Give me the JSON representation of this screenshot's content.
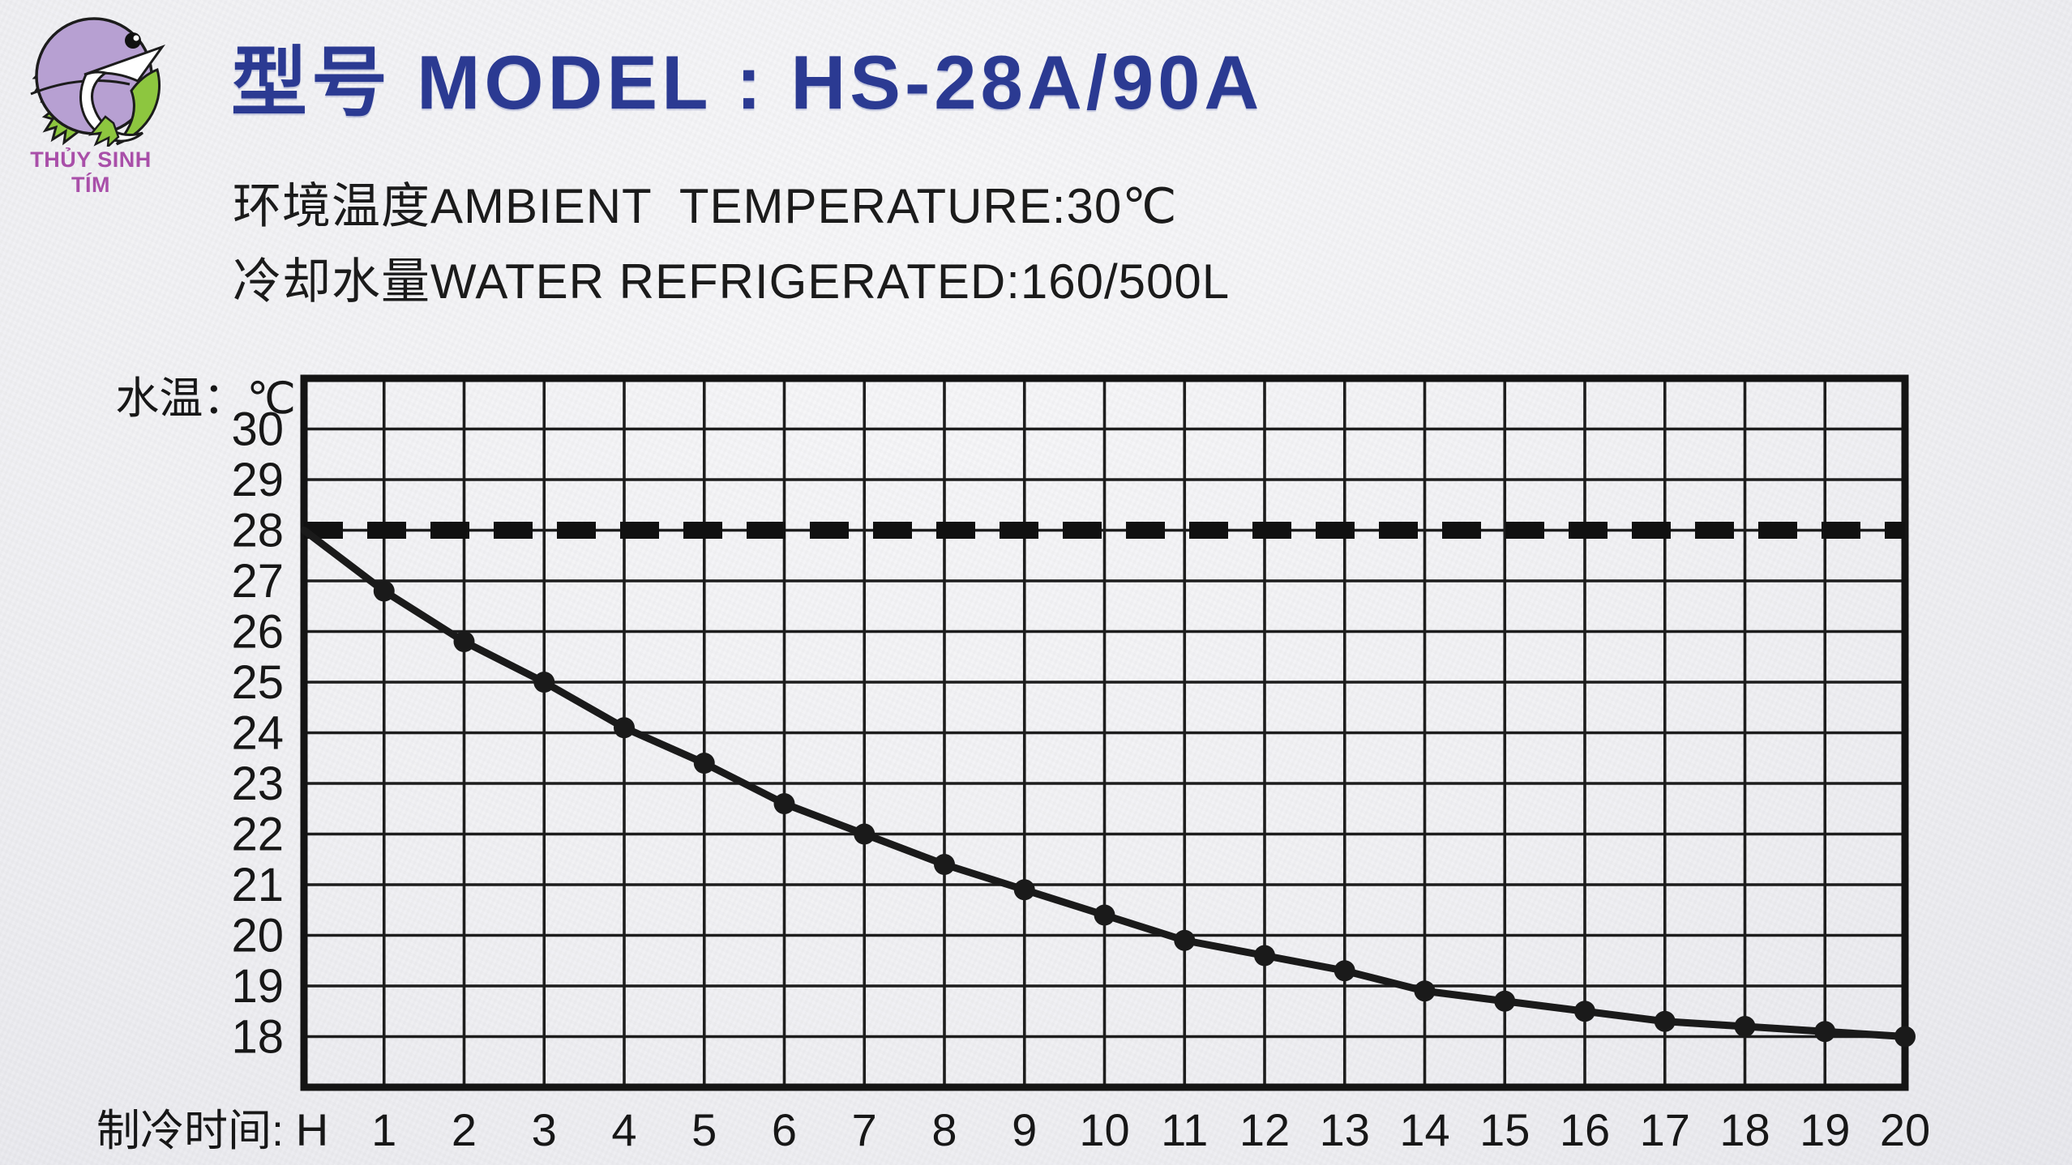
{
  "logo": {
    "brand": "THỦY SINH TÍM",
    "brand_color": "#a94fa9",
    "fish_icon": "purple-fish-logo",
    "fish_color": "#b7a0d2",
    "fin_color": "#8dc63f"
  },
  "header": {
    "title": "型号 MODEL : HS-28A/90A",
    "title_color": "#2b3a92",
    "subtitle_ambient": "环境温度AMBIENT  TEMPERATURE:30℃",
    "subtitle_water": "冷却水量WATER REFRIGERATED:160/500L"
  },
  "chart_data": {
    "type": "line",
    "title": "",
    "ylabel": "水温：℃",
    "xlabel": "制冷时间:",
    "x_origin_label": "H",
    "xlim": [
      0,
      20
    ],
    "ylim": [
      17,
      31
    ],
    "grid": true,
    "legend": "none",
    "x": [
      0,
      1,
      2,
      3,
      4,
      5,
      6,
      7,
      8,
      9,
      10,
      11,
      12,
      13,
      14,
      15,
      16,
      17,
      18,
      19,
      20
    ],
    "x_ticks": [
      1,
      2,
      3,
      4,
      5,
      6,
      7,
      8,
      9,
      10,
      11,
      12,
      13,
      14,
      15,
      16,
      17,
      18,
      19,
      20
    ],
    "y_ticks": [
      30,
      29,
      28,
      27,
      26,
      25,
      24,
      23,
      22,
      21,
      20,
      19,
      18
    ],
    "reference_line": {
      "value": 28,
      "style": "dashed",
      "color": "#111111"
    },
    "series": [
      {
        "name": "water temperature ℃",
        "color": "#1a1a1a",
        "marker": "dot",
        "values": [
          28,
          26.8,
          25.8,
          25,
          24.1,
          23.4,
          22.6,
          22,
          21.4,
          20.9,
          20.4,
          19.9,
          19.6,
          19.3,
          18.9,
          18.7,
          18.5,
          18.3,
          18.2,
          18.1,
          18
        ]
      }
    ]
  }
}
